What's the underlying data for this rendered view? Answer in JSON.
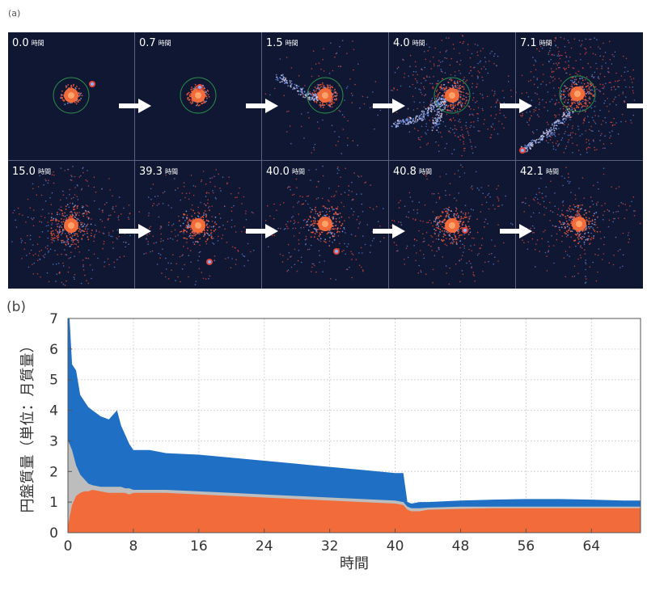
{
  "panel_a": {
    "label": "(a)",
    "time_unit": "時間",
    "snapshots": [
      {
        "time": "0.0"
      },
      {
        "time": "0.7"
      },
      {
        "time": "1.5"
      },
      {
        "time": "4.0"
      },
      {
        "time": "7.1"
      },
      {
        "time": "15.0"
      },
      {
        "time": "39.3"
      },
      {
        "time": "40.0"
      },
      {
        "time": "40.8"
      },
      {
        "time": "42.1"
      }
    ]
  },
  "panel_b": {
    "label": "(b)"
  },
  "colors": {
    "background_a": "#0f1733",
    "protodisk_core": "#f26b3a",
    "silicate": "#f26b3a",
    "iron_grey": "#bdbdbd",
    "outer": "#1f6fc4",
    "arrow": "#ffffff"
  },
  "chart_data": {
    "type": "area",
    "title": "",
    "xlabel": "時間",
    "ylabel": "円盤質量（単位：月質量）",
    "xlim": [
      0,
      70
    ],
    "ylim": [
      0,
      7
    ],
    "xticks": [
      "0",
      "8",
      "16",
      "24",
      "32",
      "40",
      "48",
      "56",
      "64"
    ],
    "yticks": [
      "0",
      "1",
      "2",
      "3",
      "4",
      "5",
      "6",
      "7"
    ],
    "grid": true,
    "x": [
      0,
      0.2,
      0.5,
      1,
      1.5,
      2,
      2.5,
      3,
      4,
      5,
      6,
      6.5,
      7,
      7.5,
      8,
      10,
      12,
      16,
      20,
      24,
      28,
      32,
      36,
      40,
      41,
      41.5,
      42,
      43,
      44,
      48,
      52,
      56,
      60,
      64,
      68,
      70
    ],
    "series": [
      {
        "values": [
          0.2,
          0.5,
          0.9,
          1.2,
          1.3,
          1.35,
          1.35,
          1.4,
          1.35,
          1.3,
          1.3,
          1.3,
          1.3,
          1.25,
          1.3,
          1.3,
          1.3,
          1.25,
          1.2,
          1.15,
          1.1,
          1.05,
          1.0,
          0.95,
          0.9,
          0.75,
          0.7,
          0.7,
          0.75,
          0.78,
          0.8,
          0.8,
          0.8,
          0.8,
          0.8,
          0.8
        ]
      },
      {
        "values": [
          3.0,
          2.9,
          2.7,
          2.2,
          1.9,
          1.75,
          1.6,
          1.55,
          1.5,
          1.5,
          1.5,
          1.5,
          1.45,
          1.45,
          1.4,
          1.4,
          1.4,
          1.35,
          1.3,
          1.25,
          1.2,
          1.15,
          1.1,
          1.05,
          1.0,
          0.85,
          0.8,
          0.8,
          0.82,
          0.85,
          0.85,
          0.85,
          0.85,
          0.85,
          0.85,
          0.85
        ]
      },
      {
        "values": [
          7.0,
          7.0,
          5.5,
          5.3,
          4.5,
          4.3,
          4.1,
          4.0,
          3.8,
          3.7,
          4.0,
          3.5,
          3.2,
          2.9,
          2.7,
          2.7,
          2.6,
          2.55,
          2.45,
          2.35,
          2.25,
          2.15,
          2.05,
          1.95,
          1.95,
          1.0,
          0.95,
          1.0,
          1.0,
          1.05,
          1.08,
          1.1,
          1.1,
          1.08,
          1.05,
          1.05
        ]
      }
    ]
  }
}
